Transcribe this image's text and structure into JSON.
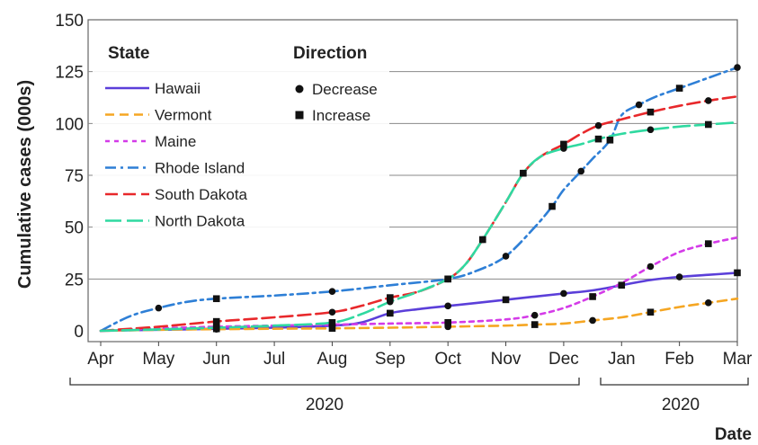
{
  "chart_data": {
    "type": "line",
    "xlabel": "Date",
    "ylabel": "Cumulative cases (000s)",
    "x_ticks": [
      "Apr",
      "May",
      "Jun",
      "Jul",
      "Aug",
      "Sep",
      "Oct",
      "Nov",
      "Dec",
      "Jan",
      "Feb",
      "Mar"
    ],
    "y_ticks": [
      "0",
      "25",
      "50",
      "75",
      "100",
      "125",
      "150"
    ],
    "ylim": [
      0,
      150
    ],
    "grid": "horizontal",
    "year_labels": [
      "2020",
      "2020"
    ],
    "legend": {
      "placement": "top-left",
      "state_title": "State",
      "direction_title": "Direction",
      "direction_items": [
        {
          "label": "Decrease",
          "marker": "circle"
        },
        {
          "label": "Increase",
          "marker": "square"
        }
      ]
    },
    "series": [
      {
        "name": "Hawaii",
        "color": "#5b3fd9",
        "dash": "solid",
        "x": [
          0,
          1,
          2,
          3,
          4,
          4.5,
          5,
          5.5,
          6,
          6.5,
          7,
          7.5,
          8,
          8.5,
          9,
          9.5,
          10,
          10.5,
          11
        ],
        "y": [
          0,
          0.5,
          1,
          1.5,
          2.5,
          4,
          8.5,
          10.5,
          12,
          13.5,
          15,
          16.5,
          18,
          19.5,
          22,
          24.5,
          26,
          27,
          28
        ]
      },
      {
        "name": "Vermont",
        "color": "#f5a623",
        "dash": "10,6",
        "x": [
          0,
          1,
          2,
          3,
          4,
          5,
          6,
          7,
          7.5,
          8,
          8.5,
          9,
          9.5,
          10,
          10.5,
          11
        ],
        "y": [
          0,
          0.5,
          0.8,
          1,
          1.2,
          1.5,
          2,
          2.5,
          3,
          3.5,
          5,
          6.5,
          9,
          11.5,
          13.5,
          15.5
        ]
      },
      {
        "name": "Maine",
        "color": "#d43be8",
        "dash": "5,5",
        "x": [
          0,
          1,
          2,
          3,
          4,
          5,
          6,
          7,
          7.5,
          8,
          8.5,
          9,
          9.5,
          10,
          10.5,
          11
        ],
        "y": [
          0,
          1.2,
          2,
          2.5,
          3,
          3.5,
          4,
          5.5,
          7.5,
          11,
          16.5,
          23,
          31,
          38,
          42,
          45
        ]
      },
      {
        "name": "Rhode Island",
        "color": "#2e7fd6",
        "dash": "12,5,3,5",
        "x": [
          0,
          0.5,
          1,
          1.5,
          2,
          3,
          4,
          5,
          6,
          6.5,
          7,
          7.5,
          7.8,
          8,
          8.3,
          8.5,
          8.8,
          9,
          9.3,
          9.6,
          10,
          10.5,
          11
        ],
        "y": [
          0,
          7,
          11,
          14,
          15.5,
          17,
          19,
          22,
          25,
          29,
          36,
          50,
          60,
          68,
          77,
          83,
          92,
          104,
          109,
          113,
          117,
          122,
          127
        ]
      },
      {
        "name": "South Dakota",
        "color": "#e8282b",
        "dash": "14,6",
        "x": [
          0,
          1,
          2,
          3,
          4,
          4.5,
          5,
          5.5,
          6,
          6.3,
          6.6,
          7,
          7.3,
          7.6,
          8,
          8.3,
          8.6,
          9,
          9.5,
          10,
          10.5,
          11
        ],
        "y": [
          0,
          2,
          4.5,
          6.5,
          9,
          12,
          16,
          19,
          25,
          32,
          44,
          62,
          76,
          84,
          90,
          95,
          99,
          102,
          105.5,
          108.5,
          111,
          113
        ]
      },
      {
        "name": "North Dakota",
        "color": "#2fd9a0",
        "dash": "18,6",
        "x": [
          0,
          1,
          2,
          3,
          4,
          4.5,
          5,
          5.5,
          6,
          6.3,
          6.6,
          7,
          7.3,
          7.6,
          8,
          8.3,
          8.6,
          9,
          9.5,
          10,
          10.5,
          11
        ],
        "y": [
          0,
          0.7,
          1.5,
          2.5,
          4,
          8,
          14,
          19,
          25,
          32,
          44,
          62,
          76,
          84,
          88,
          90,
          92.5,
          95,
          97,
          98.5,
          99.5,
          100.5
        ]
      }
    ]
  }
}
